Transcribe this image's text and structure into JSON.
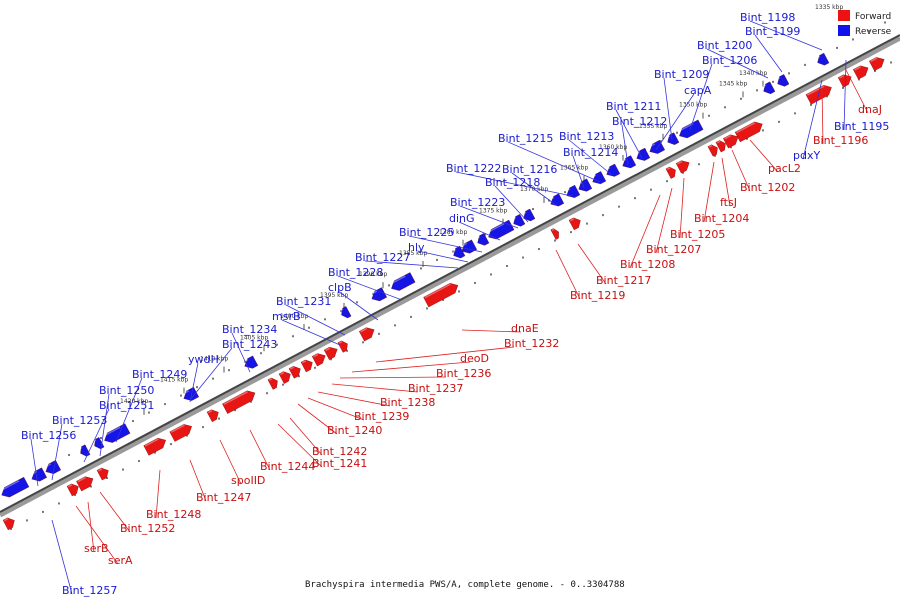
{
  "legend": {
    "forward": {
      "label": "Forward",
      "color": "#ee1111"
    },
    "reverse": {
      "label": "Reverse",
      "color": "#1111ee"
    }
  },
  "caption": "Brachyspira intermedia PWS/A, complete genome. - 0..3304788",
  "corner_label": "1335 kbp",
  "ticks": [
    "1340 kbp",
    "1345 kbp",
    "1350 kbp",
    "1355 kbp",
    "1360 kbp",
    "1365 kbp",
    "1370 kbp",
    "1375 kbp",
    "1380 kbp",
    "1385 kbp",
    "1390 kbp",
    "1395 kbp",
    "1400 kbp",
    "1405 kbp",
    "1410 kbp",
    "1415 kbp",
    "1420 kbp"
  ],
  "reverse_labels": [
    "Bint_1198",
    "Bint_1199",
    "Bint_1200",
    "Bint_1206",
    "Bint_1209",
    "capA",
    "Bint_1211",
    "Bint_1212",
    "Bint_1213",
    "Bint_1215",
    "Bint_1214",
    "Bint_1222",
    "Bint_1216",
    "Bint_1218",
    "Bint_1223",
    "dinG",
    "Bint_1225",
    "hly",
    "Bint_1227",
    "Bint_1228",
    "clpB",
    "Bint_1231",
    "msrB",
    "Bint_1234",
    "Bint_1243",
    "ywdH",
    "Bint_1249",
    "Bint_1250",
    "Bint_1251",
    "Bint_1253",
    "Bint_1256",
    "Bint_1257",
    "Bint_1195",
    "pdxY"
  ],
  "forward_labels": [
    "dnaJ",
    "Bint_1196",
    "pacL2",
    "Bint_1202",
    "ftsJ",
    "Bint_1204",
    "Bint_1205",
    "Bint_1207",
    "Bint_1208",
    "Bint_1217",
    "Bint_1219",
    "dnaE",
    "Bint_1232",
    "deoD",
    "Bint_1236",
    "Bint_1237",
    "Bint_1238",
    "Bint_1239",
    "Bint_1240",
    "Bint_1242",
    "Bint_1241",
    "Bint_1244",
    "spoIID",
    "Bint_1247",
    "Bint_1248",
    "Bint_1252",
    "serB",
    "serA"
  ]
}
